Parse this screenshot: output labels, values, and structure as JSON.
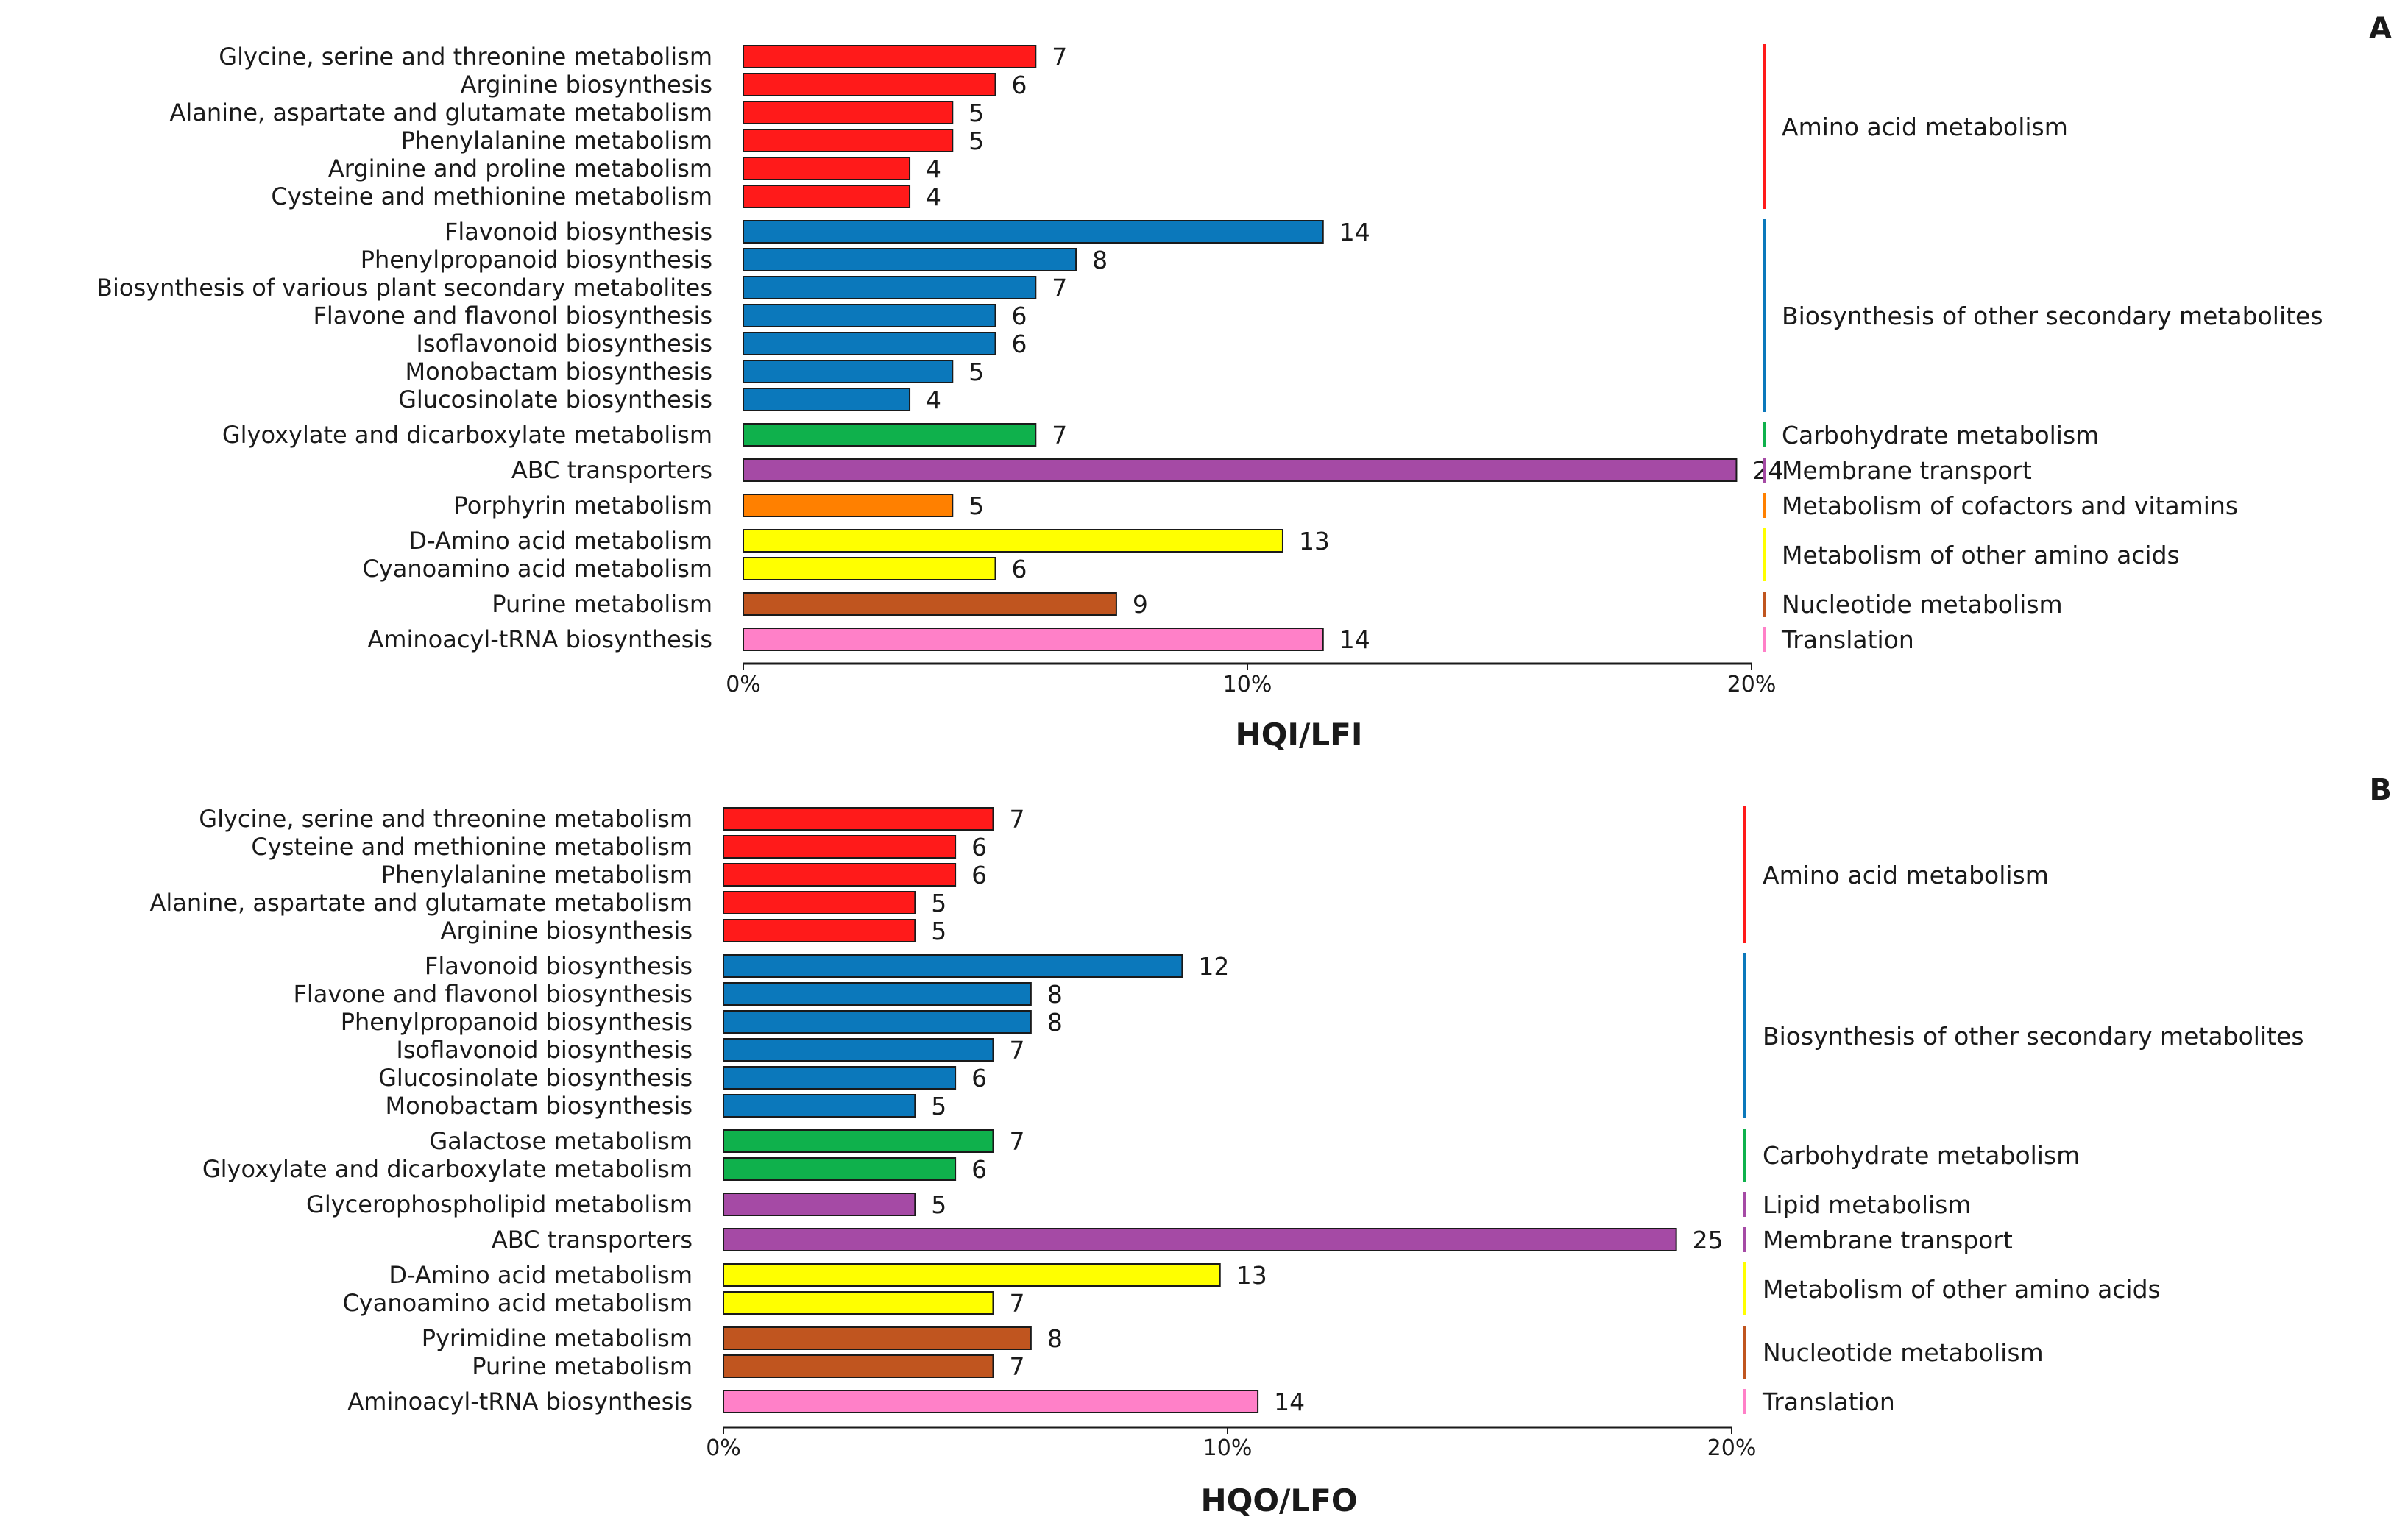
{
  "colors": {
    "Amino acid metabolism": "#ff1a1a",
    "Biosynthesis of other secondary metabolites": "#0b78bb",
    "Carbohydrate metabolism": "#0fb14c",
    "Membrane transport": "#a54aa5",
    "Metabolism of cofactors and vitamins": "#ff8000",
    "Metabolism of other amino acids": "#ffff00",
    "Nucleotide metabolism": "#c0551f",
    "Translation": "#ff80c8",
    "Lipid metabolism": "#a54aa5"
  },
  "chart_data": [
    {
      "type": "bar",
      "orientation": "horizontal",
      "panel": "A",
      "xlabel": "HQI/LFI",
      "x_ticks": [
        "0%",
        "10%",
        "20%"
      ],
      "xlim_percent": [
        0,
        20
      ],
      "bars": [
        {
          "label": "Glycine, serine and threonine metabolism",
          "count": 7,
          "percent": 5.8,
          "category": "Amino acid metabolism"
        },
        {
          "label": "Arginine biosynthesis",
          "count": 6,
          "percent": 5.0,
          "category": "Amino acid metabolism"
        },
        {
          "label": "Alanine, aspartate and glutamate metabolism",
          "count": 5,
          "percent": 4.15,
          "category": "Amino acid metabolism"
        },
        {
          "label": "Phenylalanine metabolism",
          "count": 5,
          "percent": 4.15,
          "category": "Amino acid metabolism"
        },
        {
          "label": "Arginine and proline metabolism",
          "count": 4,
          "percent": 3.3,
          "category": "Amino acid metabolism"
        },
        {
          "label": "Cysteine and methionine metabolism",
          "count": 4,
          "percent": 3.3,
          "category": "Amino acid metabolism"
        },
        {
          "label": "Flavonoid biosynthesis",
          "count": 14,
          "percent": 11.5,
          "category": "Biosynthesis of other secondary metabolites"
        },
        {
          "label": "Phenylpropanoid biosynthesis",
          "count": 8,
          "percent": 6.6,
          "category": "Biosynthesis of other secondary metabolites"
        },
        {
          "label": "Biosynthesis of various plant secondary metabolites",
          "count": 7,
          "percent": 5.8,
          "category": "Biosynthesis of other secondary metabolites"
        },
        {
          "label": "Flavone and flavonol biosynthesis",
          "count": 6,
          "percent": 5.0,
          "category": "Biosynthesis of other secondary metabolites"
        },
        {
          "label": "Isoflavonoid biosynthesis",
          "count": 6,
          "percent": 5.0,
          "category": "Biosynthesis of other secondary metabolites"
        },
        {
          "label": "Monobactam biosynthesis",
          "count": 5,
          "percent": 4.15,
          "category": "Biosynthesis of other secondary metabolites"
        },
        {
          "label": "Glucosinolate biosynthesis",
          "count": 4,
          "percent": 3.3,
          "category": "Biosynthesis of other secondary metabolites"
        },
        {
          "label": "Glyoxylate and dicarboxylate metabolism",
          "count": 7,
          "percent": 5.8,
          "category": "Carbohydrate metabolism"
        },
        {
          "label": "ABC transporters",
          "count": 24,
          "percent": 19.7,
          "category": "Membrane transport"
        },
        {
          "label": "Porphyrin metabolism",
          "count": 5,
          "percent": 4.15,
          "category": "Metabolism of cofactors and vitamins"
        },
        {
          "label": "D-Amino acid metabolism",
          "count": 13,
          "percent": 10.7,
          "category": "Metabolism of other amino acids"
        },
        {
          "label": "Cyanoamino acid metabolism",
          "count": 6,
          "percent": 5.0,
          "category": "Metabolism of other amino acids"
        },
        {
          "label": "Purine metabolism",
          "count": 9,
          "percent": 7.4,
          "category": "Nucleotide metabolism"
        },
        {
          "label": "Aminoacyl-tRNA biosynthesis",
          "count": 14,
          "percent": 11.5,
          "category": "Translation"
        }
      ],
      "categories": [
        "Amino acid metabolism",
        "Biosynthesis of other secondary metabolites",
        "Carbohydrate metabolism",
        "Membrane transport",
        "Metabolism of cofactors and vitamins",
        "Metabolism of other amino acids",
        "Nucleotide metabolism",
        "Translation"
      ]
    },
    {
      "type": "bar",
      "orientation": "horizontal",
      "panel": "B",
      "xlabel": "HQO/LFO",
      "x_ticks": [
        "0%",
        "10%",
        "20%"
      ],
      "xlim_percent": [
        0,
        20
      ],
      "bars": [
        {
          "label": "Glycine, serine and threonine metabolism",
          "count": 7,
          "percent": 5.35,
          "category": "Amino acid metabolism"
        },
        {
          "label": "Cysteine and methionine metabolism",
          "count": 6,
          "percent": 4.6,
          "category": "Amino acid metabolism"
        },
        {
          "label": "Phenylalanine metabolism",
          "count": 6,
          "percent": 4.6,
          "category": "Amino acid metabolism"
        },
        {
          "label": "Alanine, aspartate and glutamate metabolism",
          "count": 5,
          "percent": 3.8,
          "category": "Amino acid metabolism"
        },
        {
          "label": "Arginine biosynthesis",
          "count": 5,
          "percent": 3.8,
          "category": "Amino acid metabolism"
        },
        {
          "label": "Flavonoid biosynthesis",
          "count": 12,
          "percent": 9.1,
          "category": "Biosynthesis of other secondary metabolites"
        },
        {
          "label": "Flavone and flavonol biosynthesis",
          "count": 8,
          "percent": 6.1,
          "category": "Biosynthesis of other secondary metabolites"
        },
        {
          "label": "Phenylpropanoid biosynthesis",
          "count": 8,
          "percent": 6.1,
          "category": "Biosynthesis of other secondary metabolites"
        },
        {
          "label": "Isoflavonoid biosynthesis",
          "count": 7,
          "percent": 5.35,
          "category": "Biosynthesis of other secondary metabolites"
        },
        {
          "label": "Glucosinolate biosynthesis",
          "count": 6,
          "percent": 4.6,
          "category": "Biosynthesis of other secondary metabolites"
        },
        {
          "label": "Monobactam biosynthesis",
          "count": 5,
          "percent": 3.8,
          "category": "Biosynthesis of other secondary metabolites"
        },
        {
          "label": "Galactose metabolism",
          "count": 7,
          "percent": 5.35,
          "category": "Carbohydrate metabolism"
        },
        {
          "label": "Glyoxylate and dicarboxylate metabolism",
          "count": 6,
          "percent": 4.6,
          "category": "Carbohydrate metabolism"
        },
        {
          "label": "Glycerophospholipid metabolism",
          "count": 5,
          "percent": 3.8,
          "category": "Lipid metabolism"
        },
        {
          "label": "ABC transporters",
          "count": 25,
          "percent": 18.9,
          "category": "Membrane transport"
        },
        {
          "label": "D-Amino acid metabolism",
          "count": 13,
          "percent": 9.85,
          "category": "Metabolism of other amino acids"
        },
        {
          "label": "Cyanoamino acid metabolism",
          "count": 7,
          "percent": 5.35,
          "category": "Metabolism of other amino acids"
        },
        {
          "label": "Pyrimidine metabolism",
          "count": 8,
          "percent": 6.1,
          "category": "Nucleotide metabolism"
        },
        {
          "label": "Purine metabolism",
          "count": 7,
          "percent": 5.35,
          "category": "Nucleotide metabolism"
        },
        {
          "label": "Aminoacyl-tRNA biosynthesis",
          "count": 14,
          "percent": 10.6,
          "category": "Translation"
        }
      ],
      "categories": [
        "Amino acid metabolism",
        "Biosynthesis of other secondary metabolites",
        "Carbohydrate metabolism",
        "Lipid metabolism",
        "Membrane transport",
        "Metabolism of other amino acids",
        "Nucleotide metabolism",
        "Translation"
      ]
    }
  ]
}
